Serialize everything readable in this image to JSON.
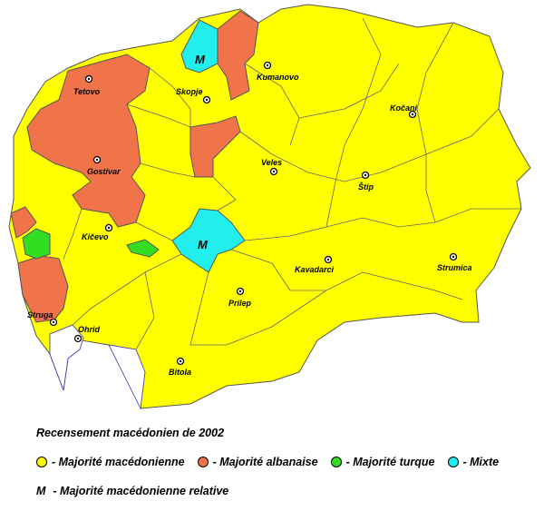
{
  "map": {
    "cities": [
      {
        "name": "Tetovo"
      },
      {
        "name": "Skopje"
      },
      {
        "name": "Kumanovo"
      },
      {
        "name": "Kočani"
      },
      {
        "name": "Gostivar"
      },
      {
        "name": "Veles"
      },
      {
        "name": "Štip"
      },
      {
        "name": "Kičevo"
      },
      {
        "name": "Kavadarci"
      },
      {
        "name": "Strumica"
      },
      {
        "name": "Prilep"
      },
      {
        "name": "Struga"
      },
      {
        "name": "Ohrid"
      },
      {
        "name": "Bitola"
      }
    ],
    "relative_marker": "M",
    "colors": {
      "macedonian": "#ffff00",
      "albanian": "#f0734a",
      "turkish": "#33dd22",
      "mixed": "#22eeee",
      "border": "#555555"
    }
  },
  "legend": {
    "title": "Recensement macédonien de 2002",
    "items": [
      {
        "label": "- Majorité macédonienne",
        "color": "#ffff00"
      },
      {
        "label": "- Majorité albanaise",
        "color": "#f0734a"
      },
      {
        "label": "- Majorité turque",
        "color": "#33dd22"
      },
      {
        "label": "- Mixte",
        "color": "#22eeee"
      }
    ],
    "relative_symbol": "M",
    "relative_label": "- Majorité macédonienne relative"
  }
}
